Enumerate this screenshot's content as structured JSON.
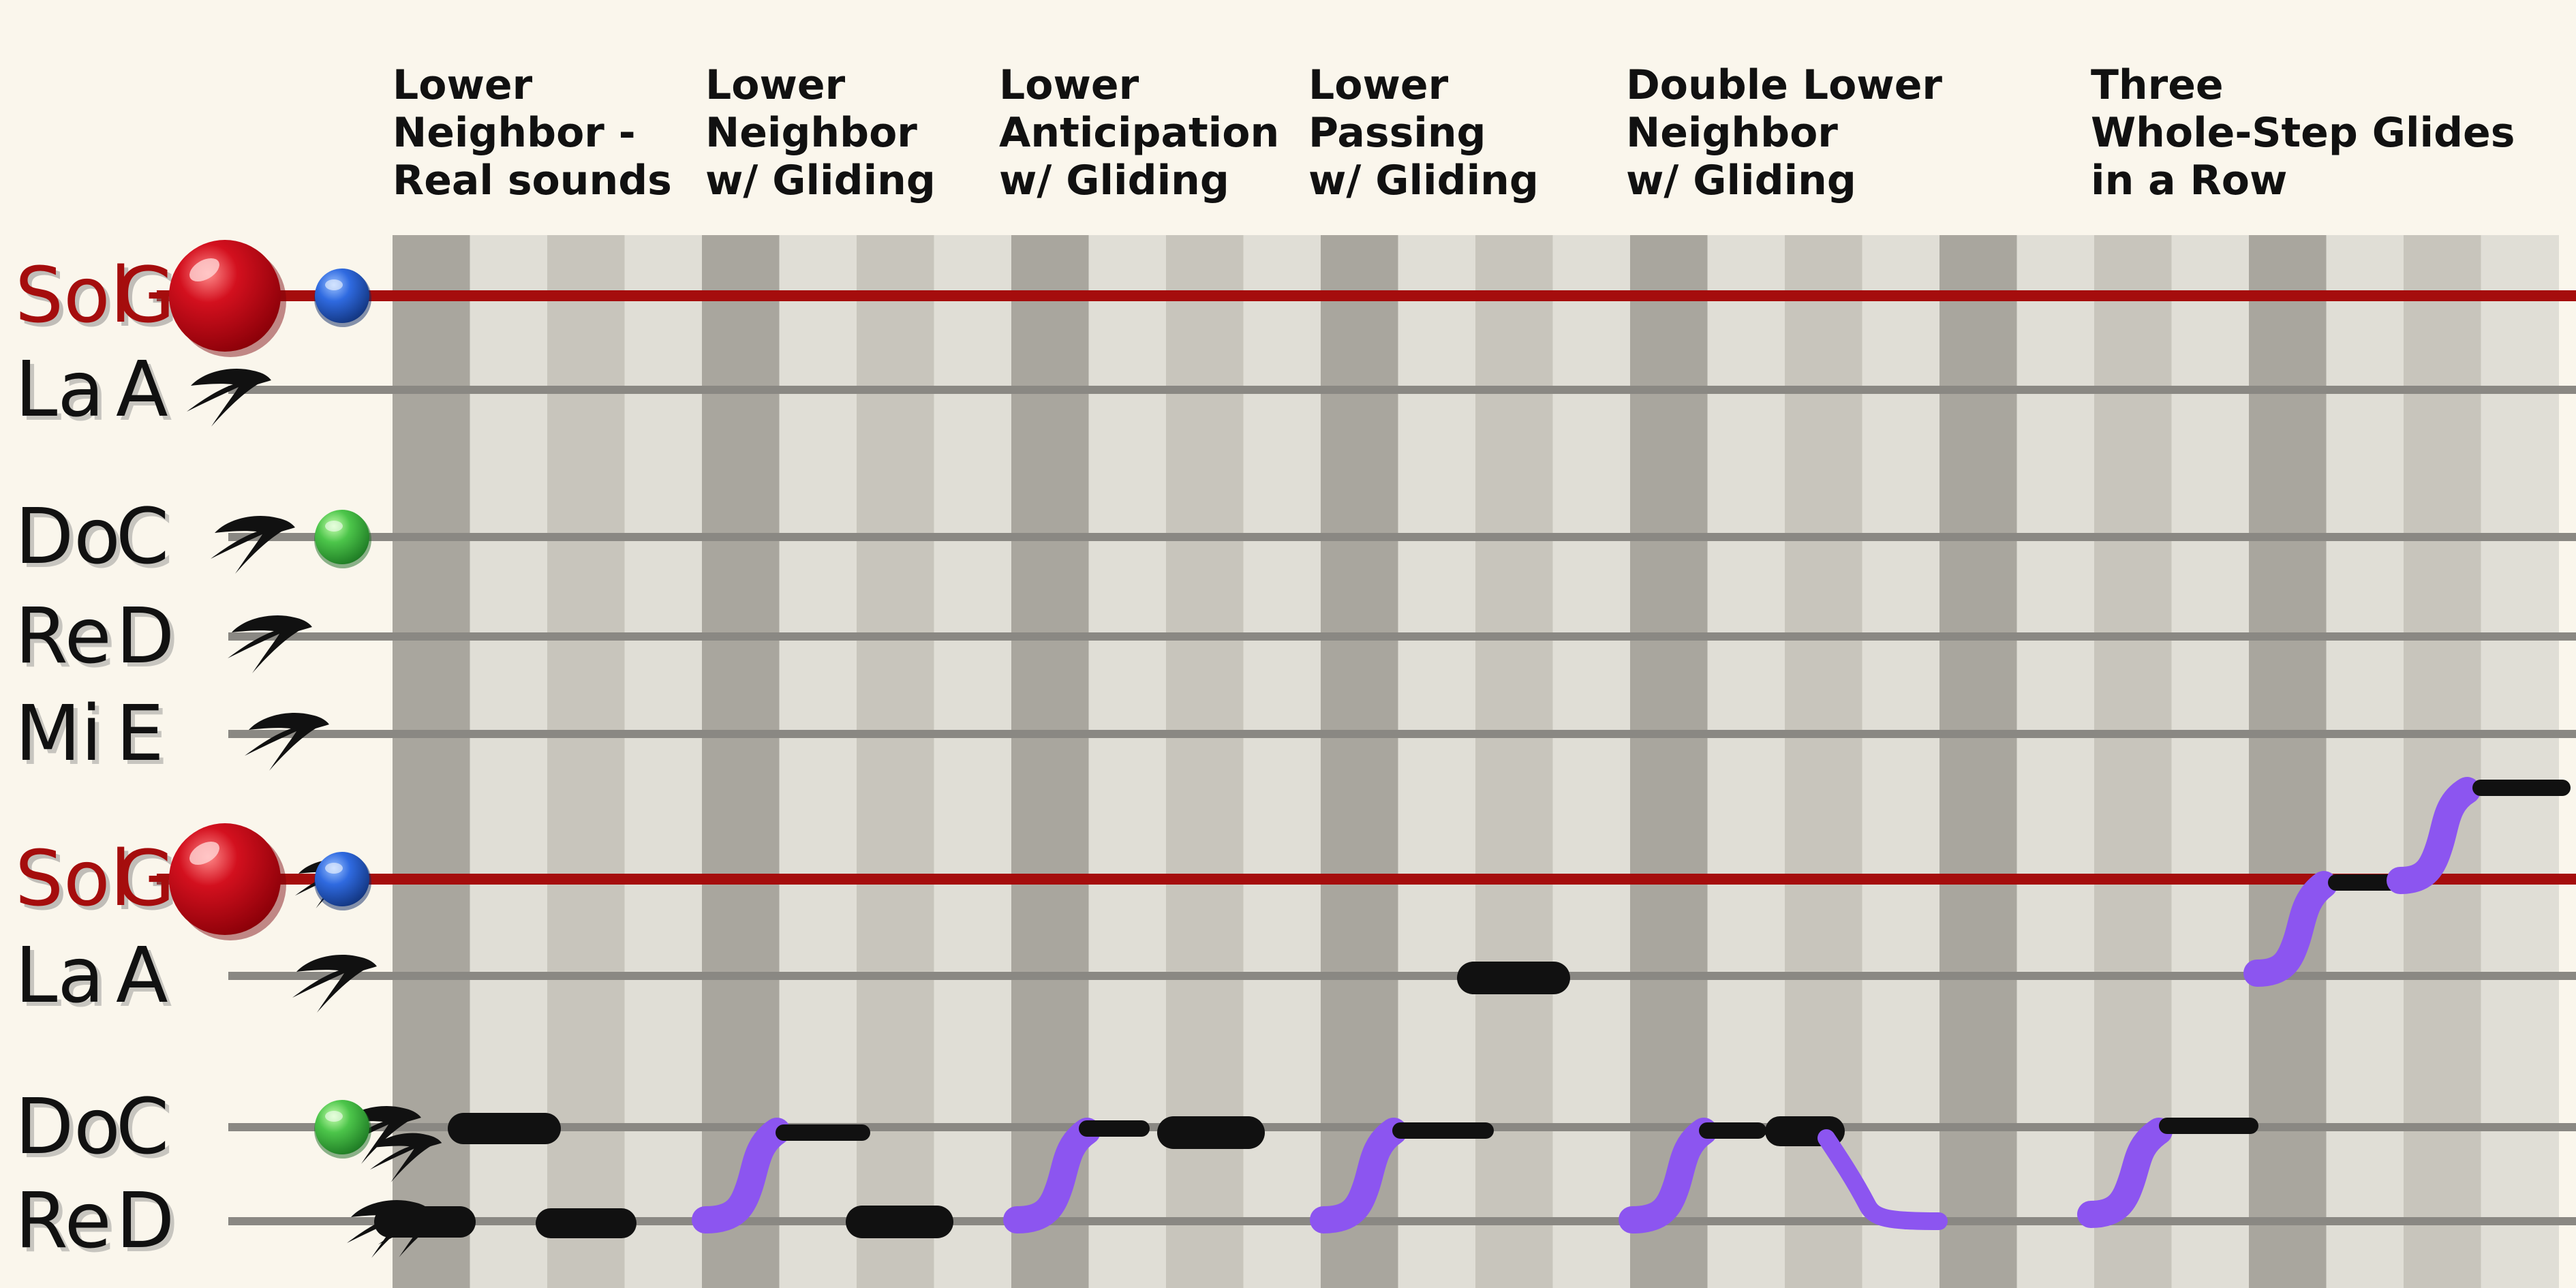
{
  "colors": {
    "background": "#faf6ec",
    "col_dark": "#a9a69e",
    "col_mid": "#c8c5bc",
    "col_light": "#e0ded6",
    "solfege_line": "#a50d0d",
    "pitch_line": "#8a8883",
    "glide": "#8c55f0",
    "note": "#111111",
    "sol_label": "#a50d0d",
    "other_label": "#111111",
    "red_ball": "#d3101e",
    "blue_ball": "#2f6ae0",
    "green_ball": "#4cc54a"
  },
  "sections": [
    {
      "title_lines": [
        "Lower",
        "Neighbor -",
        "Real sounds"
      ]
    },
    {
      "title_lines": [
        "Lower",
        "Neighbor",
        "w/ Gliding"
      ]
    },
    {
      "title_lines": [
        "Lower",
        "Anticipation",
        "w/ Gliding"
      ]
    },
    {
      "title_lines": [
        "Lower",
        "Passing",
        "w/ Gliding"
      ]
    },
    {
      "title_lines": [
        "Double Lower",
        "Neighbor",
        "w/ Gliding"
      ]
    },
    {
      "title_lines": [
        "Three",
        "Whole-Step Glides",
        "in a Row"
      ]
    }
  ],
  "staff_rows": [
    {
      "solfege": "Sol",
      "letter": "G",
      "type": "tonic",
      "icon": "red-ball"
    },
    {
      "solfege": "La",
      "letter": "A",
      "type": "normal",
      "icon": "swallow-bird"
    },
    {
      "solfege": "Do",
      "letter": "C",
      "type": "normal",
      "icon": "swallow-bird"
    },
    {
      "solfege": "Re",
      "letter": "D",
      "type": "normal",
      "icon": "swallow-bird"
    },
    {
      "solfege": "Mi",
      "letter": "E",
      "type": "normal",
      "icon": "swallow-bird"
    },
    {
      "solfege": "Sol",
      "letter": "G",
      "type": "tonic",
      "icon": "red-ball"
    },
    {
      "solfege": "La",
      "letter": "A",
      "type": "normal",
      "icon": "swallow-bird"
    },
    {
      "solfege": "Do",
      "letter": "C",
      "type": "normal",
      "icon": "swallow-bird"
    },
    {
      "solfege": "Re",
      "letter": "D",
      "type": "normal",
      "icon": "swallow-bird"
    }
  ],
  "column_pattern": [
    "dark",
    "light",
    "mid",
    "light"
  ],
  "column_count": 28,
  "markers": [
    {
      "row": 0,
      "kind": "blue-ball"
    },
    {
      "row": 2,
      "kind": "green-ball"
    },
    {
      "row": 5,
      "kind": "blue-ball"
    },
    {
      "row": 7,
      "kind": "green-ball"
    }
  ]
}
